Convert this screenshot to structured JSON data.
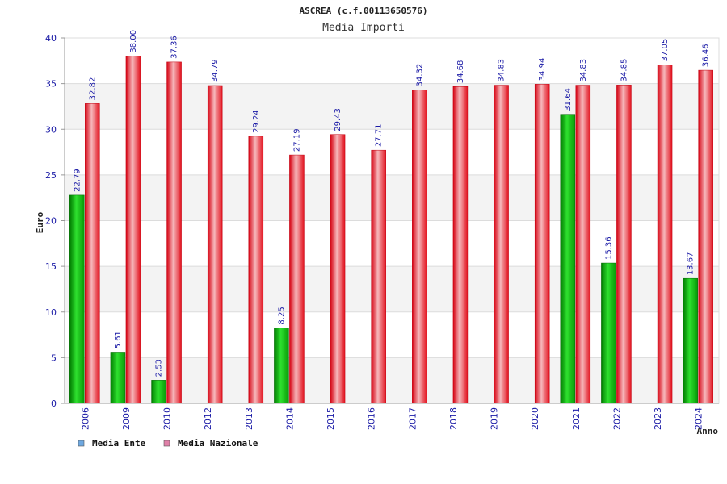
{
  "chart_data": {
    "type": "bar",
    "title": "ASCREA (c.f.00113650576)",
    "subtitle": "Media Importi",
    "ylabel": "Euro",
    "xlabel": "Anno",
    "ylim": [
      0,
      40
    ],
    "yticks": [
      0,
      5,
      10,
      15,
      20,
      25,
      30,
      35,
      40
    ],
    "ytick_labels": [
      "0",
      "5",
      "10",
      "15",
      "20",
      "25",
      "30",
      "35",
      "40"
    ],
    "grid": true,
    "legend_position": "bottom-left",
    "categories": [
      "2006",
      "2009",
      "2010",
      "2012",
      "2013",
      "2014",
      "2015",
      "2016",
      "2017",
      "2018",
      "2019",
      "2020",
      "2021",
      "2022",
      "2023",
      "2024"
    ],
    "series": [
      {
        "name": "Media Ente",
        "legend_color": "#6ea8e0",
        "color": "#0aa000",
        "values": [
          22.79,
          5.61,
          2.53,
          null,
          null,
          8.25,
          null,
          null,
          null,
          null,
          null,
          null,
          31.64,
          15.36,
          null,
          13.67
        ],
        "labels": [
          "22.79",
          "5.61",
          "2.53",
          null,
          null,
          "8.25",
          null,
          null,
          null,
          null,
          null,
          null,
          "31.64",
          "15.36",
          null,
          "13.67"
        ]
      },
      {
        "name": "Media Nazionale",
        "legend_color": "#e080a8",
        "color": "#e8101c",
        "values": [
          32.82,
          38.0,
          37.36,
          34.79,
          29.24,
          27.19,
          29.43,
          27.71,
          34.32,
          34.68,
          34.83,
          34.94,
          34.83,
          34.85,
          37.05,
          36.46
        ],
        "labels": [
          "32.82",
          "38.00",
          "37.36",
          "34.79",
          "29.24",
          "27.19",
          "29.43",
          "27.71",
          "34.32",
          "34.68",
          "34.83",
          "34.94",
          "34.83",
          "34.85",
          "37.05",
          "36.46"
        ]
      }
    ]
  }
}
